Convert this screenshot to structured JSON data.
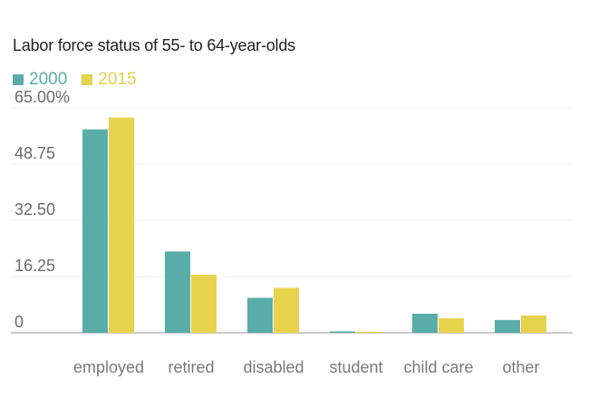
{
  "chart_data": {
    "type": "bar",
    "title": "Labor force status of 55- to 64-year-olds",
    "categories": [
      "employed",
      "retired",
      "disabled",
      "student",
      "child care",
      "other"
    ],
    "series": [
      {
        "name": "2000",
        "color": "#5aada8",
        "values": [
          58.8,
          23.5,
          10.1,
          0.4,
          5.5,
          3.7
        ]
      },
      {
        "name": "2015",
        "color": "#e6d24d",
        "values": [
          62.2,
          16.8,
          13.0,
          0.3,
          4.2,
          5.0
        ]
      }
    ],
    "yticks": [
      "65.00%",
      "48.75",
      "32.50",
      "16.25",
      "0"
    ],
    "ylim": [
      0,
      65
    ],
    "xlabel": "",
    "ylabel": "",
    "legend": "top-left",
    "grid": true
  }
}
